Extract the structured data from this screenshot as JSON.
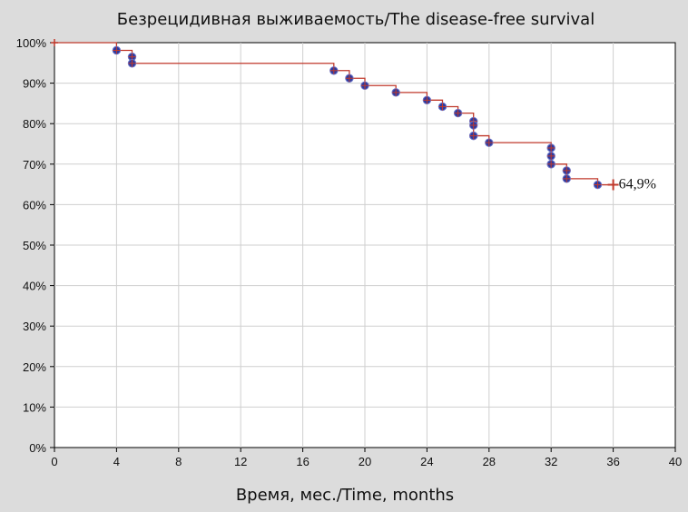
{
  "chart_data": {
    "type": "line",
    "title": "Безрецидивная выживаемость/The disease-free survival",
    "xlabel": "Время, мес./Time, months",
    "ylabel": "",
    "xlim": [
      0,
      40
    ],
    "ylim": [
      0,
      100
    ],
    "x_ticks": [
      "0",
      "4",
      "8",
      "12",
      "16",
      "20",
      "24",
      "28",
      "32",
      "36",
      "40"
    ],
    "y_ticks": [
      "0%",
      "10%",
      "20%",
      "30%",
      "40%",
      "50%",
      "60%",
      "70%",
      "80%",
      "90%",
      "100%"
    ],
    "grid": true,
    "series": [
      {
        "x": [
          0,
          4,
          5,
          5,
          18,
          19,
          20,
          22,
          24,
          25,
          26,
          27,
          27,
          28,
          32,
          33,
          35,
          36
        ],
        "y": [
          100,
          98.1,
          96.5,
          94.9,
          93.1,
          91.2,
          89.4,
          87.7,
          85.8,
          84.2,
          82.6,
          79.6,
          77.0,
          75.3,
          70.0,
          66.4,
          64.9,
          64.9
        ],
        "color": "#c0392b"
      }
    ],
    "censored": {
      "x": [
        4,
        5,
        5,
        18,
        19,
        20,
        22,
        24,
        25,
        26,
        27,
        27,
        27,
        27,
        28,
        32,
        32,
        32,
        32,
        33,
        33,
        35
      ],
      "y": [
        98.1,
        96.5,
        94.9,
        93.1,
        91.2,
        89.4,
        87.7,
        85.8,
        84.2,
        82.6,
        80.6,
        79.6,
        77.0,
        77.0,
        75.3,
        74.0,
        72.0,
        70.0,
        70.0,
        68.4,
        66.4,
        64.9
      ],
      "color": "#2e3a9e"
    },
    "annotation": {
      "label": "64,9%",
      "x": 36,
      "y": 64.9
    }
  }
}
